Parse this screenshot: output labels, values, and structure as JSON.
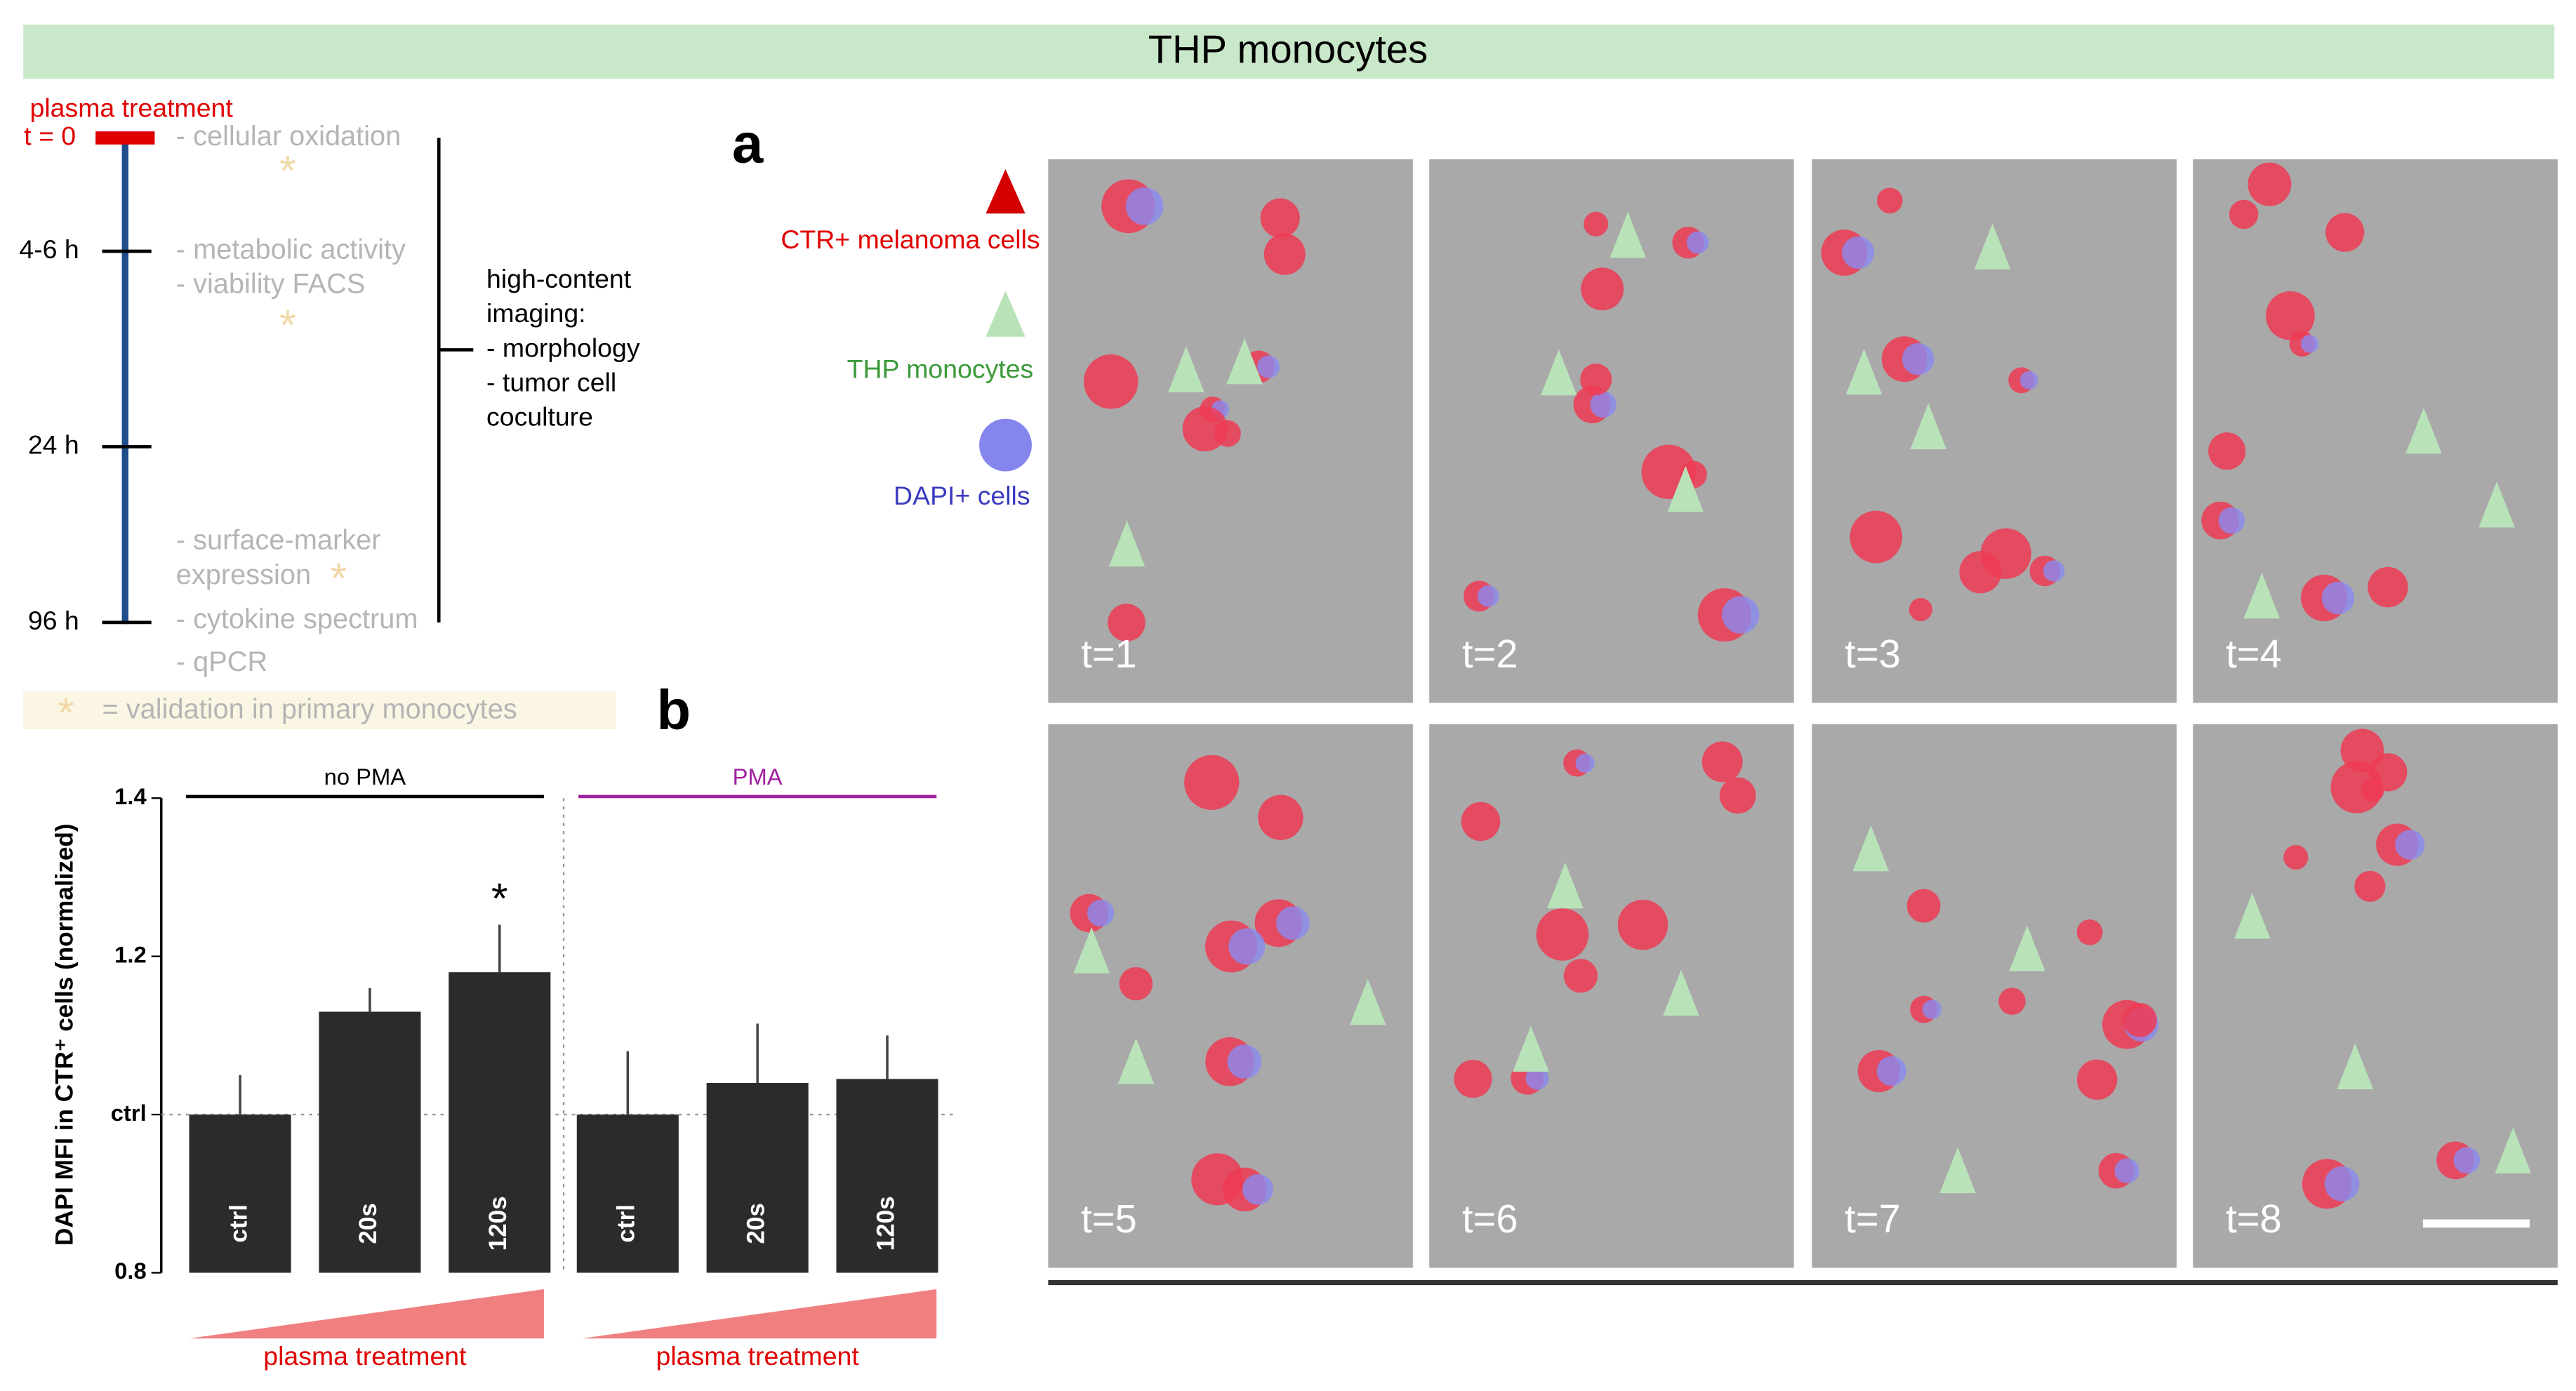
{
  "header": {
    "title": "THP monocytes"
  },
  "timeline": {
    "title": "plasma treatment",
    "times": [
      "t = 0",
      "4-6 h",
      "24 h",
      "96 h"
    ],
    "items": [
      "- cellular oxidation",
      "- metabolic activity",
      "- viability FACS",
      "- surface-marker",
      "expression",
      "- cytokine spectrum",
      "- qPCR"
    ],
    "imaging": [
      "high-content",
      "imaging:",
      "- morphology",
      "- tumor cell",
      "coculture"
    ],
    "footnote": "= validation in primary monocytes"
  },
  "panels": {
    "a": "a",
    "b": "b"
  },
  "legend": [
    "CTR+ melanoma cells",
    "THP monocytes",
    "DAPI+ cells"
  ],
  "frames": [
    "t=1",
    "t=2",
    "t=3",
    "t=4",
    "t=5",
    "t=6",
    "t=7",
    "t=8"
  ],
  "chart_data": {
    "type": "bar",
    "ylabel": "DAPI MFI in CTR⁺ cells (normalized)",
    "ylim": [
      0.8,
      1.4
    ],
    "yticks": [
      0.8,
      {
        "value": 1,
        "label": "ctrl"
      },
      1.2,
      1.4
    ],
    "groups": [
      {
        "name": "no PMA",
        "color": "#000000",
        "bar_color": "#2b2b2b",
        "categories": [
          "ctrl",
          "20s",
          "120s"
        ],
        "values": [
          1.0,
          1.13,
          1.18
        ],
        "errors": [
          0.05,
          0.03,
          0.06
        ],
        "xlabel": "plasma treatment",
        "annotation": "*"
      },
      {
        "name": "PMA",
        "color": "#a020a0",
        "bar_color": "#2b2b2b",
        "categories": [
          "ctrl",
          "20s",
          "120s"
        ],
        "values": [
          1.0,
          1.04,
          1.045
        ],
        "errors": [
          0.08,
          0.075,
          0.055
        ],
        "xlabel": "plasma treatment"
      }
    ]
  }
}
